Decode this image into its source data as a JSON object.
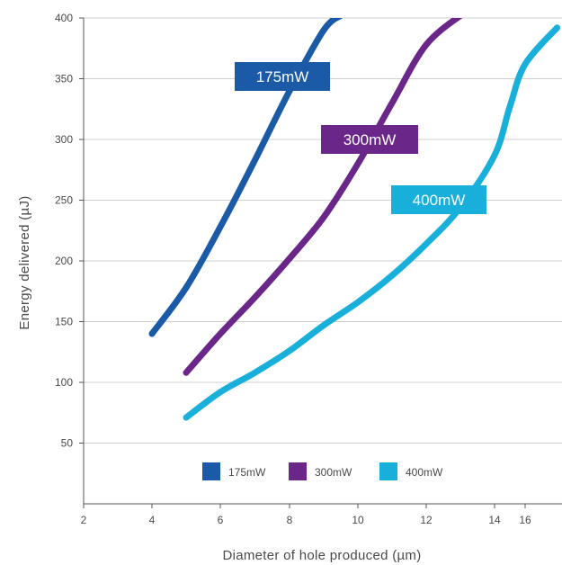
{
  "chart_data": {
    "type": "line",
    "title": "",
    "xlabel": "Diameter of hole produced (µm)",
    "ylabel": "Energy delivered (µJ)",
    "xlim": [
      2,
      17.5
    ],
    "ylim": [
      0,
      400
    ],
    "x_ticks": [
      2,
      4,
      6,
      8,
      10,
      12,
      14,
      16
    ],
    "y_ticks": [
      50,
      100,
      150,
      200,
      250,
      300,
      350,
      400
    ],
    "grid": "horizontal",
    "legend_position": "bottom",
    "series": [
      {
        "name": "175mW",
        "color": "#1a5aa6",
        "points": [
          [
            4,
            140
          ],
          [
            5,
            178
          ],
          [
            6,
            228
          ],
          [
            7,
            283
          ],
          [
            8,
            340
          ],
          [
            9,
            390
          ],
          [
            9.5,
            402
          ]
        ]
      },
      {
        "name": "300mW",
        "color": "#6a2789",
        "points": [
          [
            5,
            108
          ],
          [
            6,
            140
          ],
          [
            7,
            170
          ],
          [
            8,
            202
          ],
          [
            9,
            236
          ],
          [
            10,
            280
          ],
          [
            11,
            330
          ],
          [
            12,
            378
          ],
          [
            13.1,
            404
          ]
        ]
      },
      {
        "name": "400mW",
        "color": "#18b0da",
        "points": [
          [
            5,
            71
          ],
          [
            6,
            92
          ],
          [
            7,
            108
          ],
          [
            8,
            126
          ],
          [
            9,
            147
          ],
          [
            10,
            166
          ],
          [
            11,
            188
          ],
          [
            12,
            214
          ],
          [
            13,
            244
          ],
          [
            14,
            287
          ],
          [
            15,
            327
          ],
          [
            16,
            362
          ],
          [
            17.3,
            392
          ]
        ]
      }
    ]
  }
}
